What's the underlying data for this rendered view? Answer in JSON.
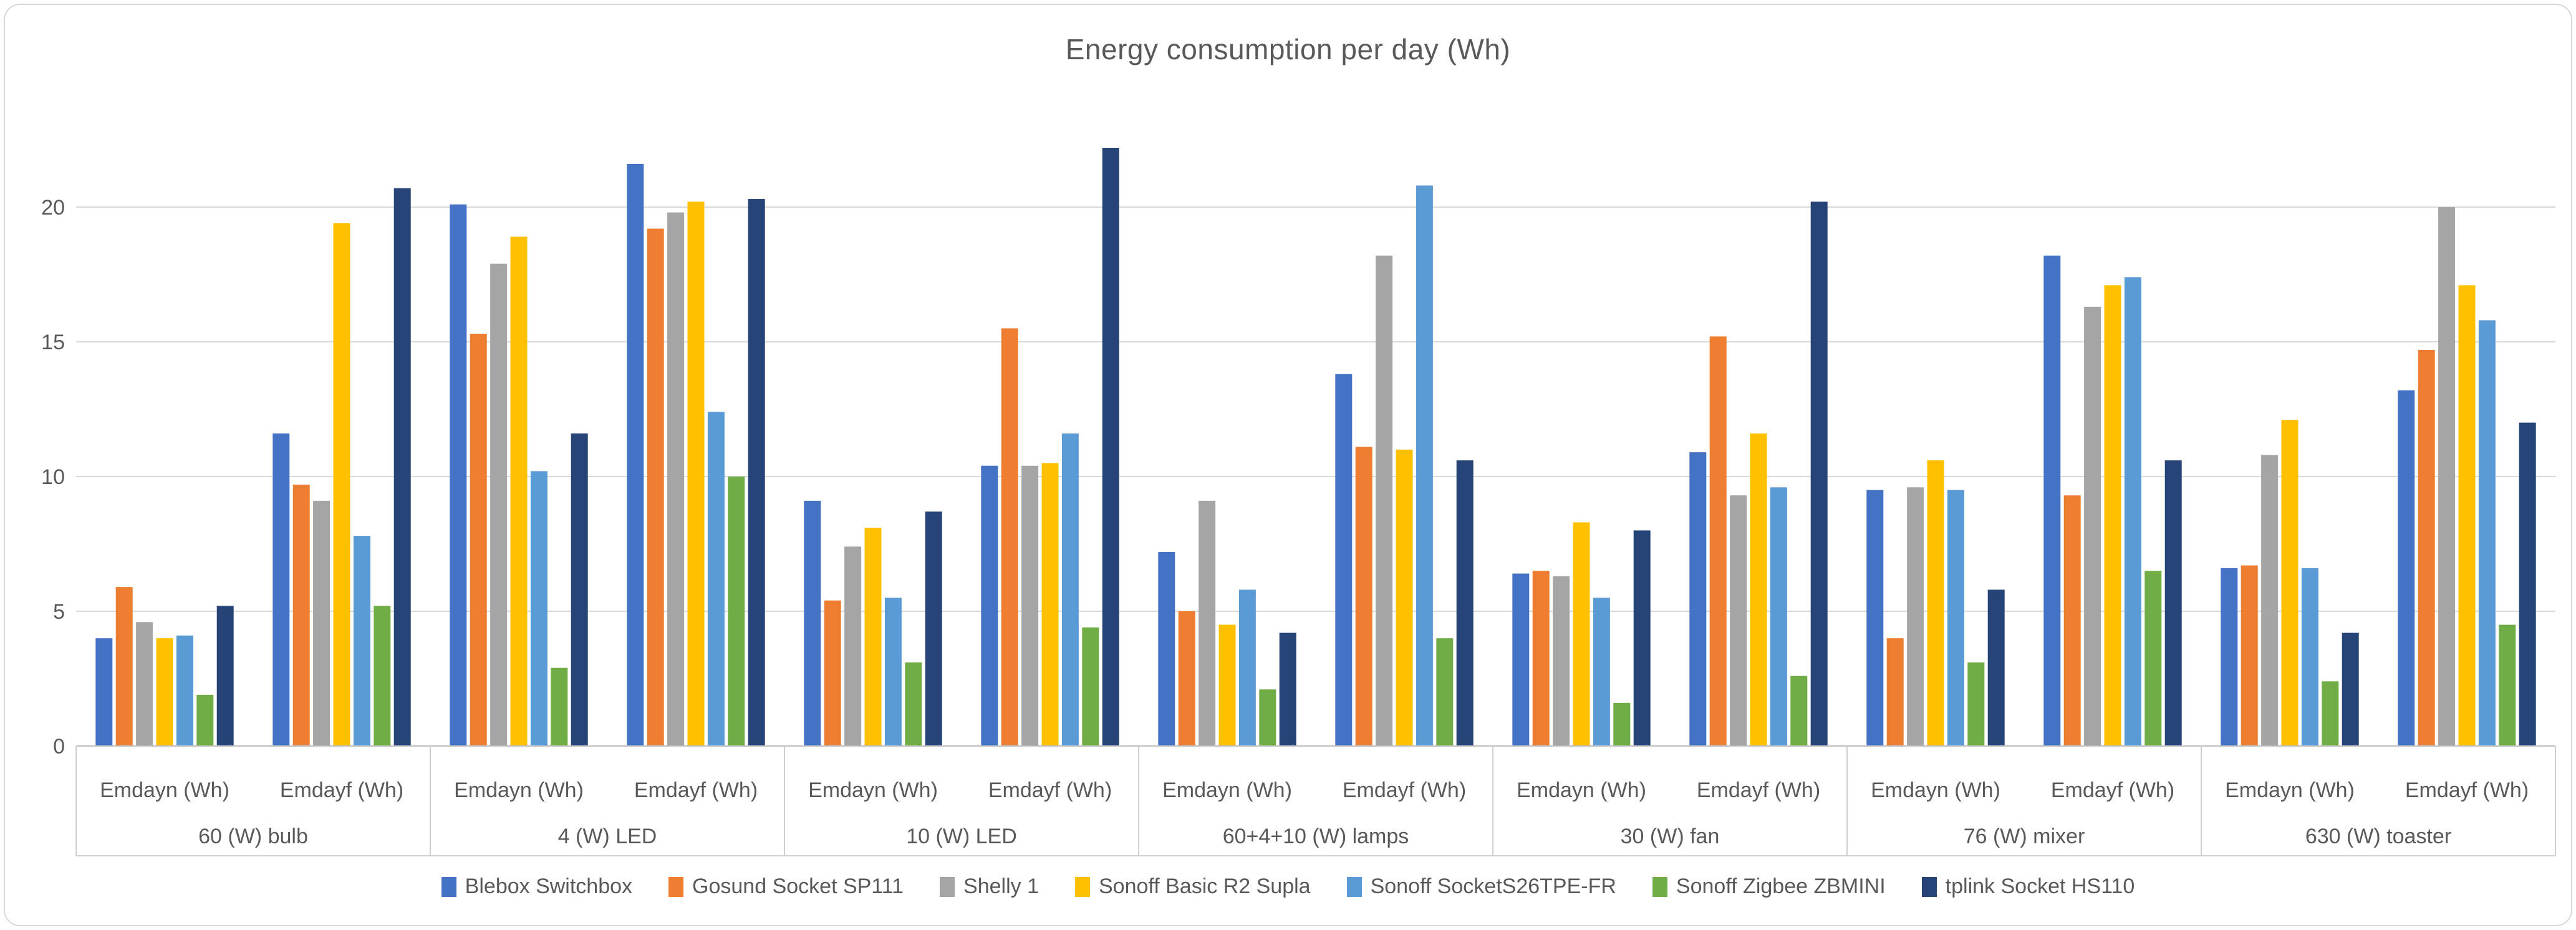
{
  "title": "Energy consumption per day  (Wh)",
  "chart_data": {
    "type": "bar",
    "title": "Energy consumption per day  (Wh)",
    "ylabel": "",
    "xlabel": "",
    "ylim": [
      0,
      22.5
    ],
    "yticks": [
      0,
      5,
      10,
      15,
      20
    ],
    "grid": true,
    "legend_position": "bottom",
    "groups": [
      "60 (W) bulb",
      "4 (W) LED",
      "10 (W) LED",
      "60+4+10 (W) lamps",
      "30 (W) fan",
      "76 (W) mixer",
      "630 (W) toaster"
    ],
    "subcategories": [
      "Emdayn (Wh)",
      "Emdayf (Wh)"
    ],
    "cluster_order_note": "14 clusters: for each group in order, Emdayn (Wh) then Emdayf (Wh)",
    "series": [
      {
        "name": "Blebox Switchbox",
        "color": "#4472C4",
        "values": [
          4.0,
          11.6,
          20.1,
          21.6,
          9.1,
          10.4,
          7.2,
          13.8,
          6.4,
          10.9,
          9.5,
          18.2,
          6.6,
          13.2
        ]
      },
      {
        "name": "Gosund Socket SP111",
        "color": "#ED7D31",
        "values": [
          5.9,
          9.7,
          15.3,
          19.2,
          5.4,
          15.5,
          5.0,
          11.1,
          6.5,
          15.2,
          4.0,
          9.3,
          6.7,
          14.7
        ]
      },
      {
        "name": "Shelly 1",
        "color": "#A5A5A5",
        "values": [
          4.6,
          9.1,
          17.9,
          19.8,
          7.4,
          10.4,
          9.1,
          18.2,
          6.3,
          9.3,
          9.6,
          16.3,
          10.8,
          20.0
        ]
      },
      {
        "name": "Sonoff Basic R2 Supla",
        "color": "#FFC000",
        "values": [
          4.0,
          19.4,
          18.9,
          20.2,
          8.1,
          10.5,
          4.5,
          11.0,
          8.3,
          11.6,
          10.6,
          17.1,
          12.1,
          17.1
        ]
      },
      {
        "name": "Sonoff SocketS26TPE-FR",
        "color": "#5B9BD5",
        "values": [
          4.1,
          7.8,
          10.2,
          12.4,
          5.5,
          11.6,
          5.8,
          20.8,
          5.5,
          9.6,
          9.5,
          17.4,
          6.6,
          15.8
        ]
      },
      {
        "name": "Sonoff Zigbee ZBMINI",
        "color": "#70AD47",
        "values": [
          1.9,
          5.2,
          2.9,
          10.0,
          3.1,
          4.4,
          2.1,
          4.0,
          1.6,
          2.6,
          3.1,
          6.5,
          2.4,
          4.5
        ]
      },
      {
        "name": "tplink Socket HS110",
        "color": "#264478",
        "values": [
          5.2,
          20.7,
          11.6,
          20.3,
          8.7,
          22.2,
          4.2,
          10.6,
          8.0,
          20.2,
          5.8,
          10.6,
          4.2,
          12.0
        ]
      }
    ]
  },
  "colors": {
    "text": "#595959",
    "gridline": "#D9D9D9",
    "axis_line": "#BFBFBF",
    "separator": "#D0D0D0",
    "frame": "#D9D9D9",
    "background": "#FFFFFF"
  }
}
